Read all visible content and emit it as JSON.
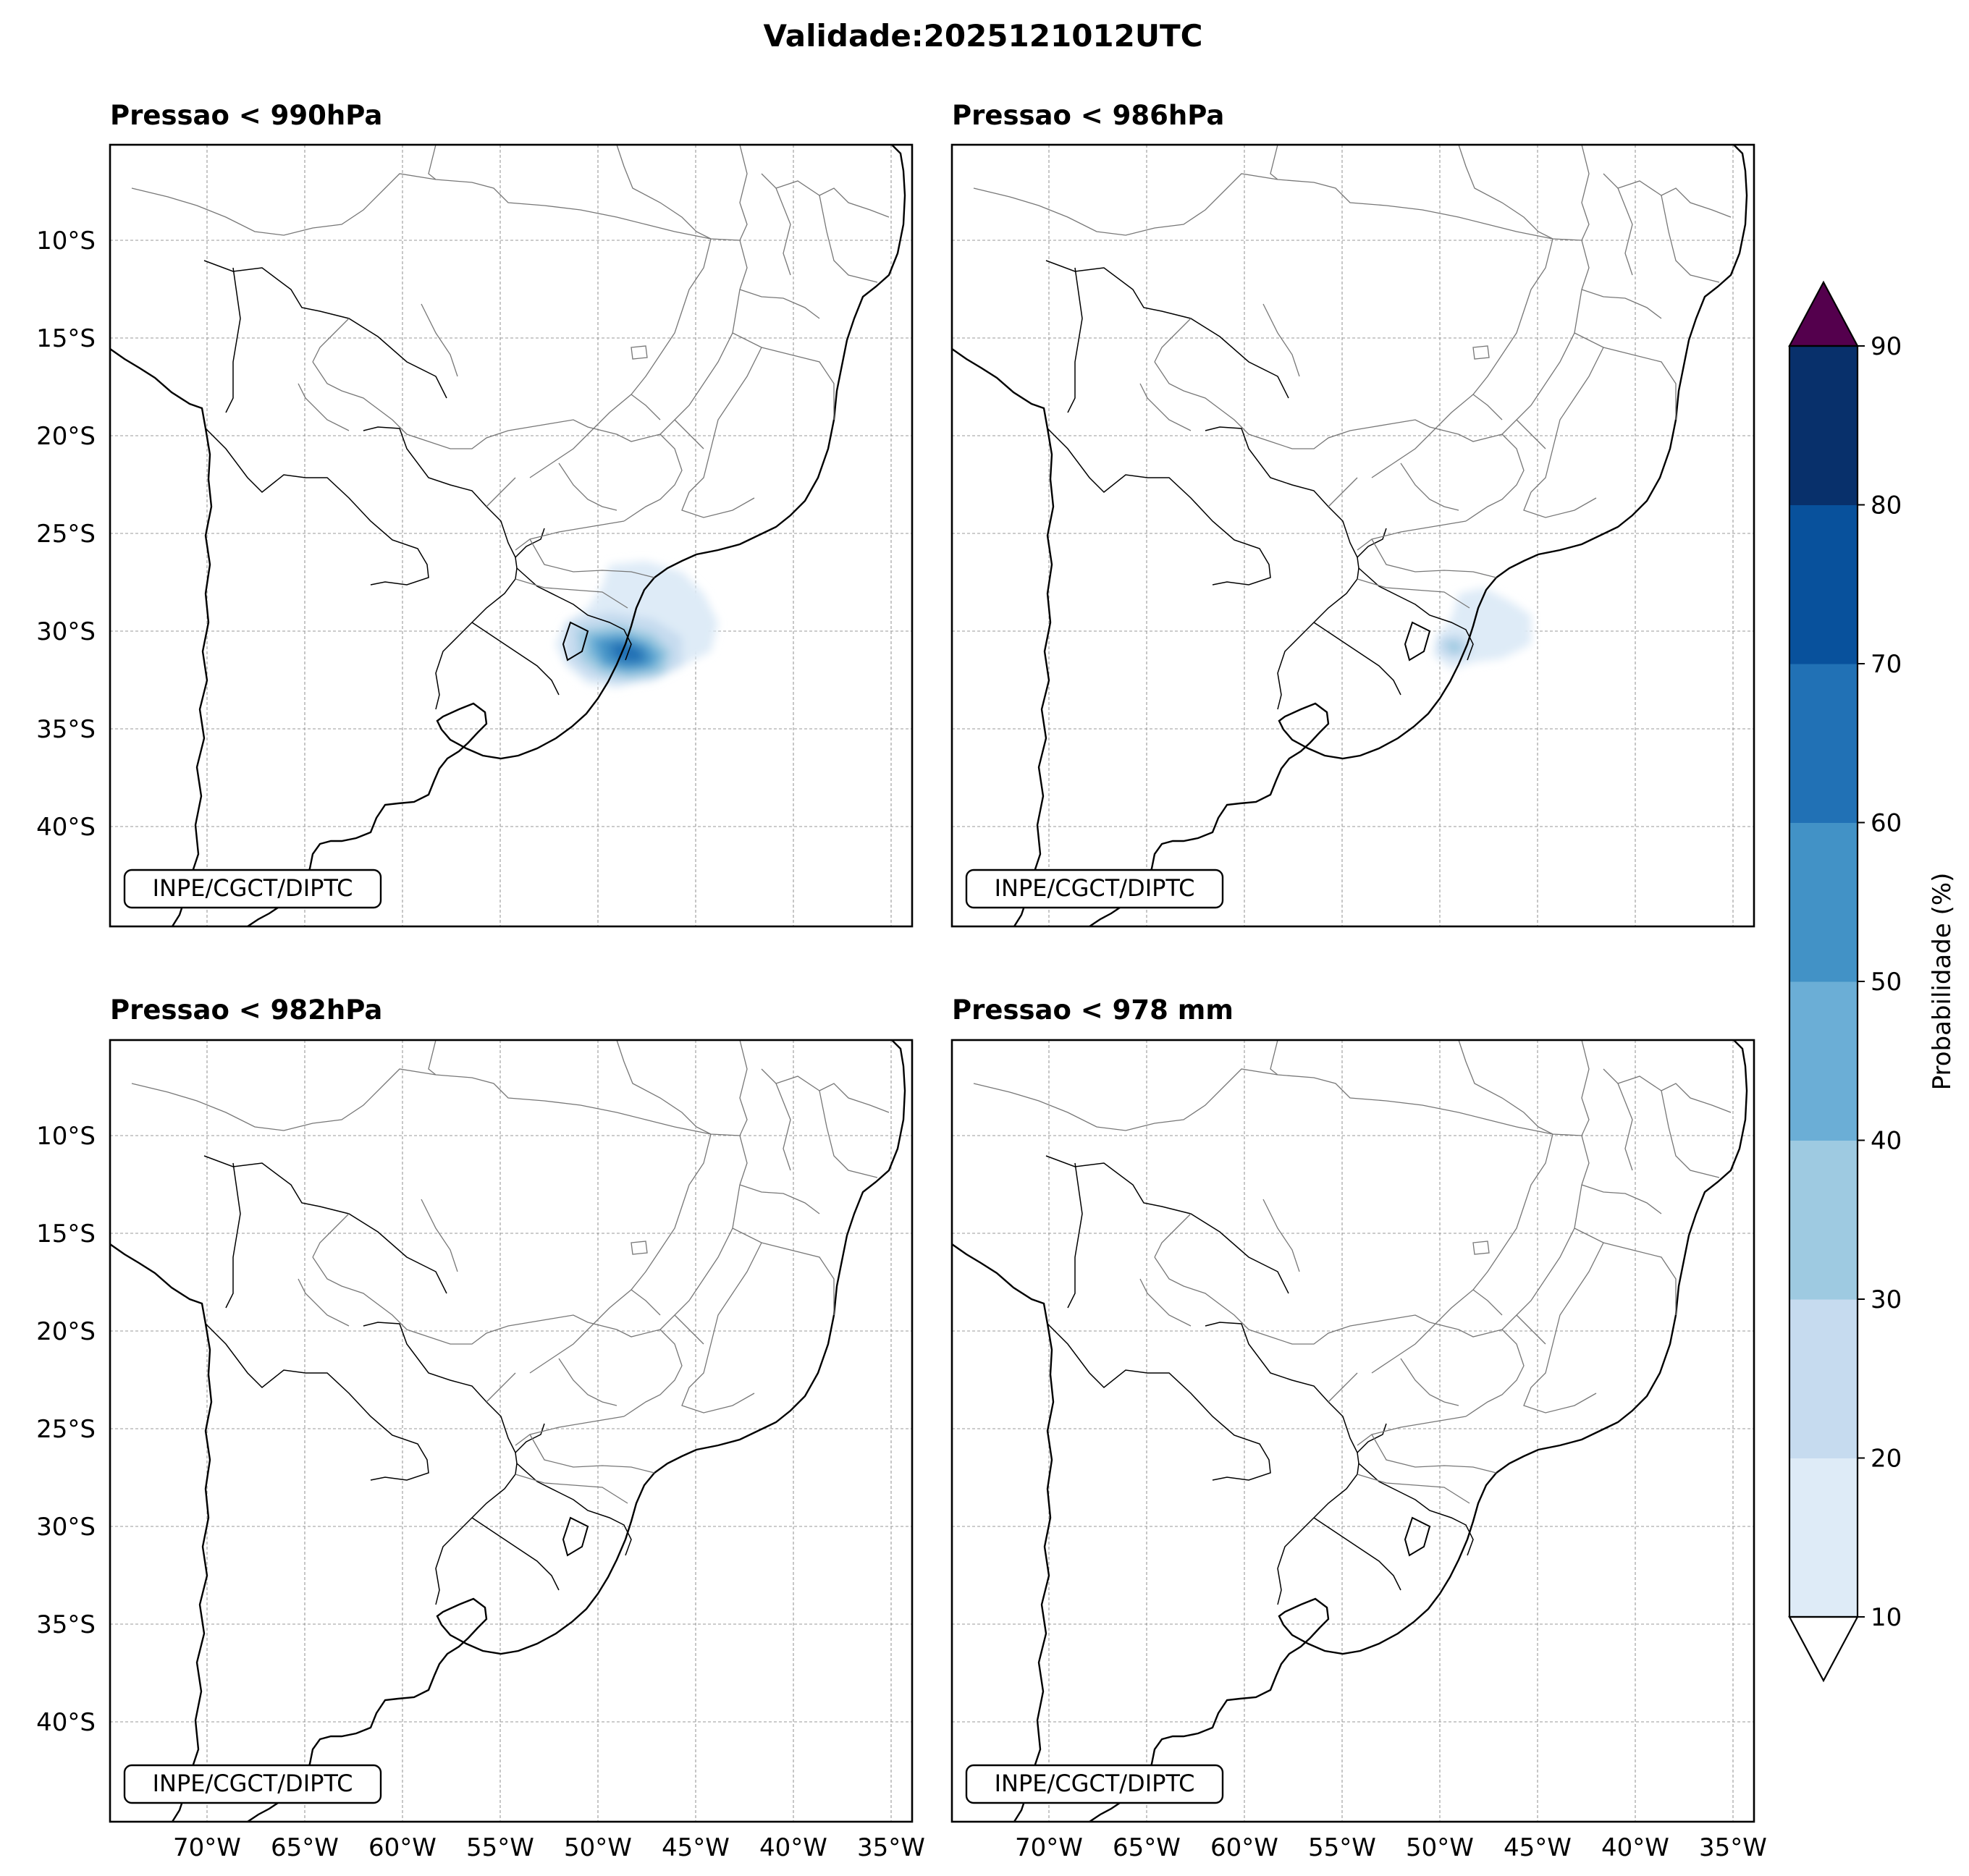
{
  "figure": {
    "title": "Validade:2025121012UTC"
  },
  "panels": [
    {
      "title": "Pressao < 990hPa",
      "credit": "INPE/CGCT/DIPTC",
      "max_probability_pct": 60
    },
    {
      "title": "Pressao < 986hPa",
      "credit": "INPE/CGCT/DIPTC",
      "max_probability_pct": 30
    },
    {
      "title": "Pressao < 982hPa",
      "credit": "INPE/CGCT/DIPTC",
      "max_probability_pct": 0
    },
    {
      "title": "Pressao < 978 mm",
      "credit": "INPE/CGCT/DIPTC",
      "max_probability_pct": 0
    }
  ],
  "axes": {
    "lon_labels": [
      "70°W",
      "65°W",
      "60°W",
      "55°W",
      "50°W",
      "45°W",
      "40°W",
      "35°W"
    ],
    "lat_labels": [
      "10°S",
      "15°S",
      "20°S",
      "25°S",
      "30°S",
      "35°S",
      "40°S"
    ]
  },
  "colorbar": {
    "label": "Probabilidade (%)",
    "ticks": [
      "10",
      "20",
      "30",
      "40",
      "50",
      "60",
      "70",
      "80",
      "90"
    ],
    "colors": [
      "#deebf7",
      "#c6dbef",
      "#9ecae1",
      "#6baed6",
      "#4292c6",
      "#2171b5",
      "#08519c",
      "#08306b"
    ],
    "over_color": "#54004d",
    "under_color": "#ffffff"
  }
}
